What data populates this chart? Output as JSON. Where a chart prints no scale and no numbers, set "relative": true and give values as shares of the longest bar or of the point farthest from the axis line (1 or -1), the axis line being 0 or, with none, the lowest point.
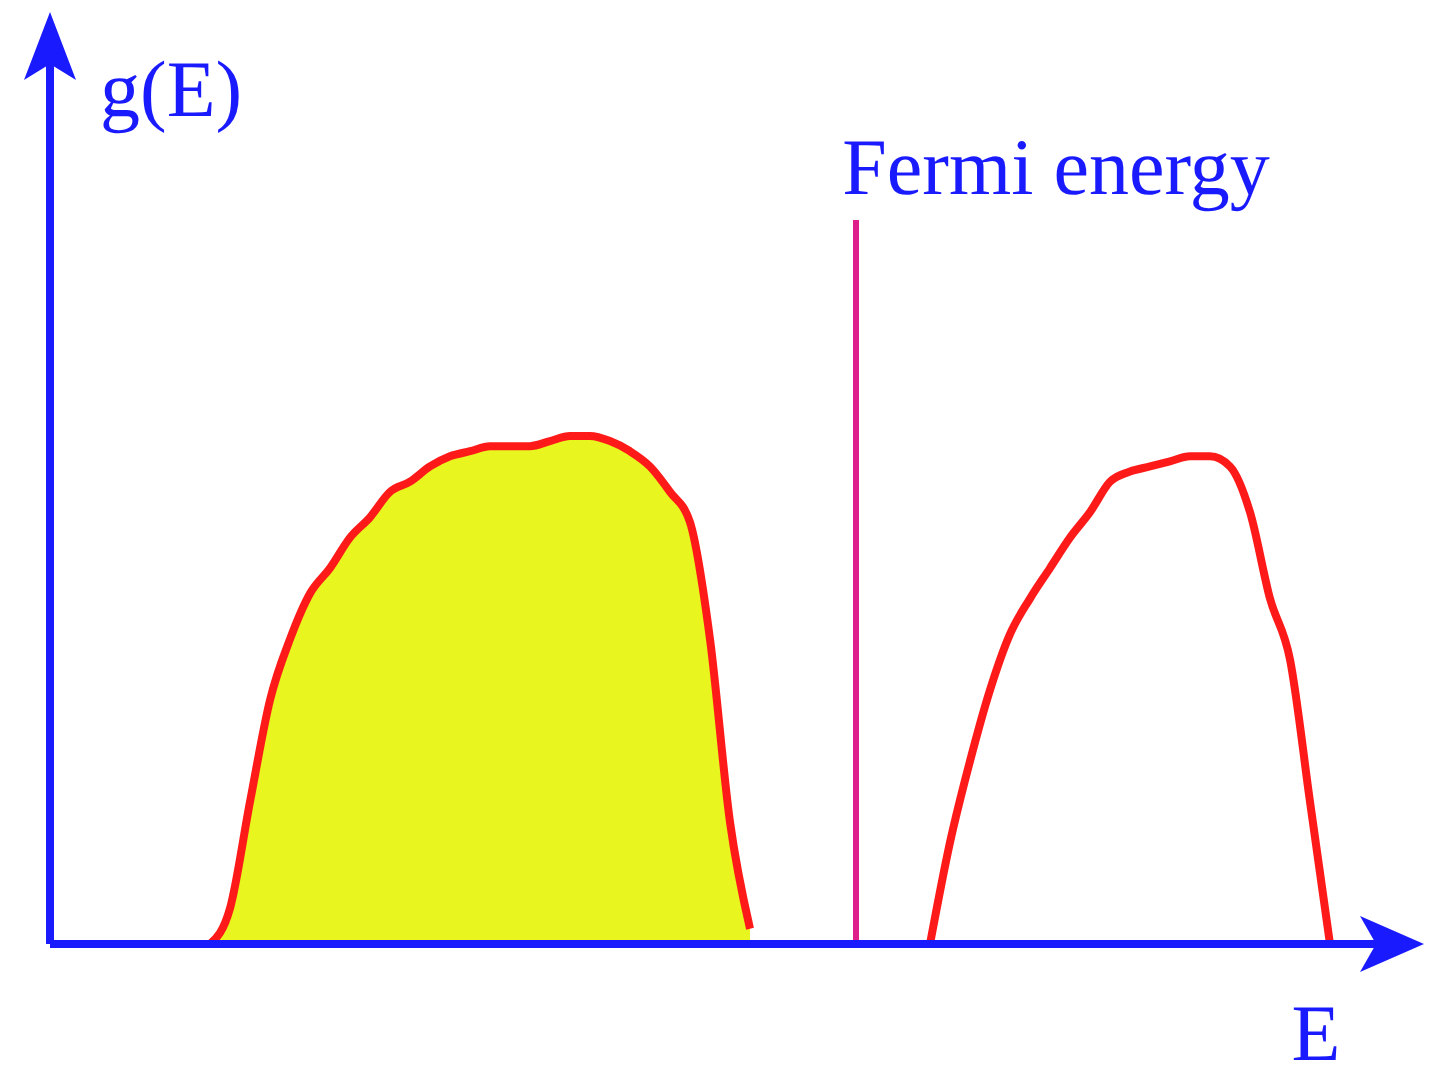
{
  "chart_data": {
    "type": "area",
    "relative": true,
    "xlabel": "E",
    "ylabel": "g(E)",
    "categories": [
      null,
      null,
      null,
      null,
      null,
      null,
      null,
      null,
      null,
      null,
      null,
      null,
      null,
      null,
      null,
      null,
      null,
      null,
      null,
      null,
      null,
      null,
      null,
      null,
      null,
      null,
      null,
      null,
      null,
      null,
      null,
      null,
      null,
      null,
      null,
      null,
      null,
      null,
      null,
      null,
      null,
      null,
      null,
      null,
      null,
      null,
      null,
      null,
      null,
      null,
      null,
      null,
      null,
      null,
      null,
      null,
      null,
      null,
      null,
      null,
      null,
      null,
      null,
      null,
      null,
      null,
      null
    ],
    "series": [
      {
        "color": "#e8f51e",
        "values": [
          null,
          null,
          null,
          null,
          null,
          null,
          null,
          null,
          0,
          0.07,
          0.28,
          0.48,
          0.6,
          0.69,
          0.74,
          0.8,
          0.84,
          0.89,
          0.91,
          0.94,
          0.96,
          0.97,
          0.98,
          0.98,
          0.98,
          0.99,
          1,
          1,
          0.99,
          0.97,
          0.94,
          0.89,
          0.83,
          0.6,
          0.24,
          0.03,
          null,
          null,
          null,
          null,
          null,
          null,
          null,
          null,
          null,
          null,
          null,
          null,
          null,
          null,
          null,
          null,
          null,
          null,
          null,
          null,
          null,
          null,
          null,
          null,
          null,
          null,
          null,
          null,
          null,
          null,
          null
        ]
      },
      {
        "type": "line",
        "color": "#ff1a1a",
        "values": [
          null,
          null,
          null,
          null,
          null,
          null,
          null,
          null,
          null,
          null,
          null,
          null,
          null,
          null,
          null,
          null,
          null,
          null,
          null,
          null,
          null,
          null,
          null,
          null,
          null,
          null,
          null,
          null,
          null,
          null,
          null,
          null,
          null,
          null,
          null,
          null,
          null,
          null,
          null,
          null,
          null,
          null,
          null,
          null,
          0,
          0.2,
          0.36,
          0.5,
          0.61,
          0.68,
          0.74,
          0.8,
          0.85,
          0.91,
          0.93,
          0.94,
          0.95,
          0.96,
          0.96,
          0.94,
          0.85,
          0.68,
          0.56,
          0.28,
          0,
          null,
          null
        ]
      }
    ],
    "annotations": [
      "Fermi energy"
    ]
  }
}
